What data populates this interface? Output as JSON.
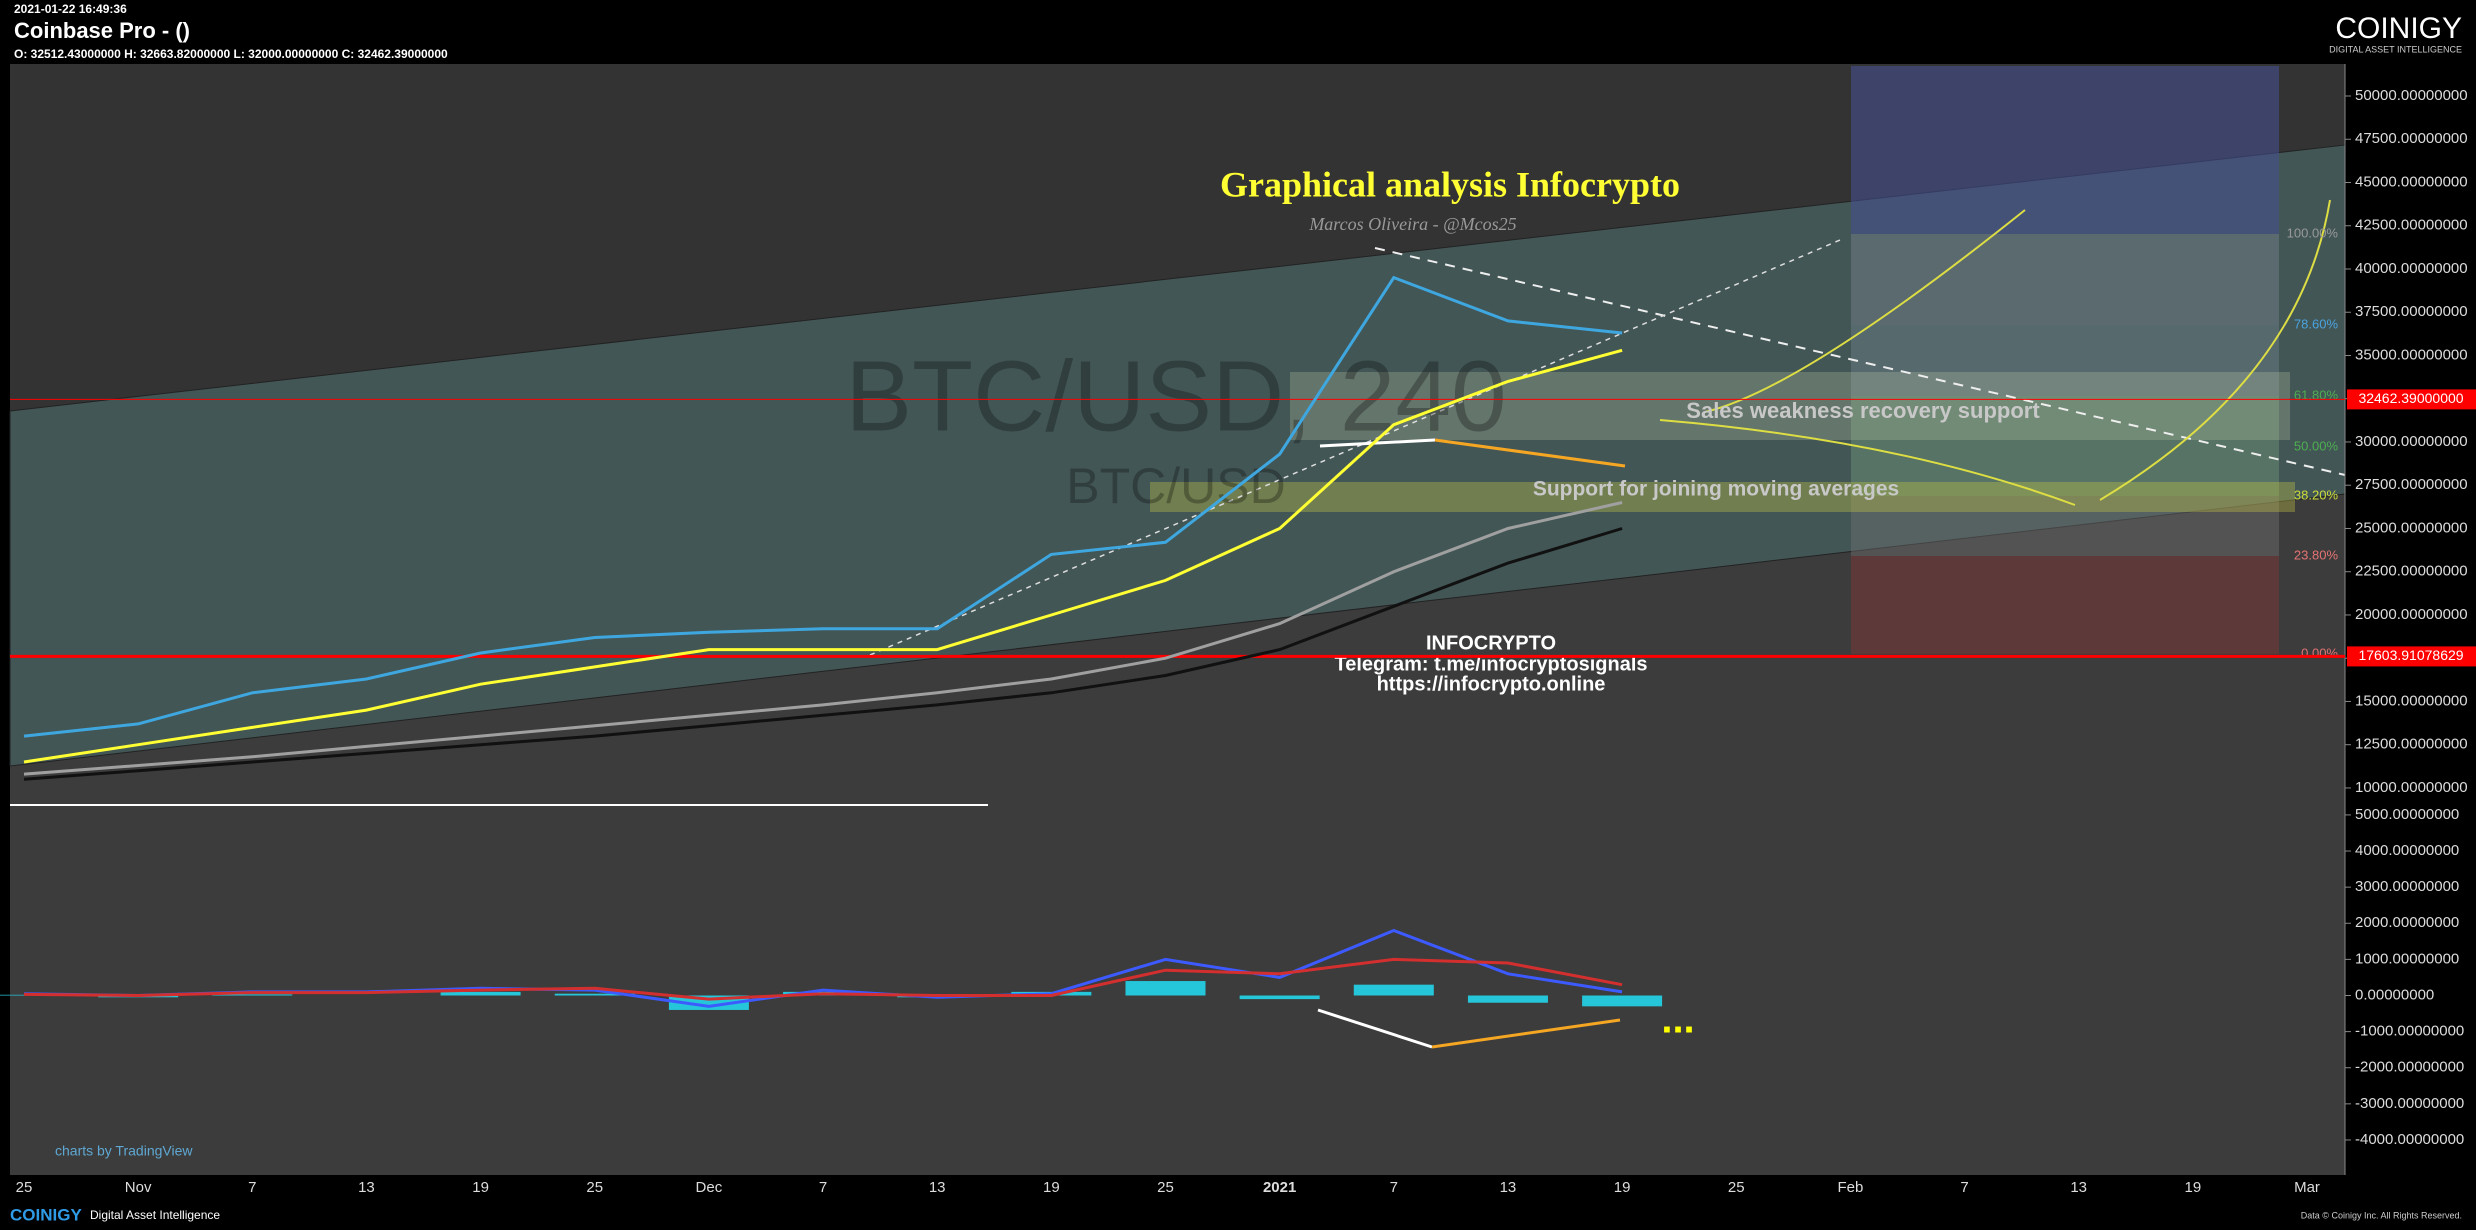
{
  "header": {
    "timestamp": "2021-01-22 16:49:36",
    "title": "Coinbase Pro -  ()",
    "ohlc": "O: 32512.43000000 H: 32663.82000000 L: 32000.00000000 C: 32462.39000000",
    "logo": "COINIGY",
    "logo_tagline": "DIGITAL ASSET INTELLIGENCE"
  },
  "annotations": {
    "title": "Graphical analysis Infocrypto",
    "author": "Marcos Oliveira - @Mcos25",
    "watermark": "BTC/USD, 240",
    "watermark_small": "BTC/USD",
    "sales_support": "Sales weakness recovery support",
    "ma_support": "Support for joining moving averages",
    "brand": "INFOCRYPTO",
    "telegram": "Telegram: t.me/infocryptosignals",
    "website": "https://infocrypto.online",
    "dots": "...",
    "fib_labels": [
      "100.00%",
      "78.60%",
      "61.80%",
      "50.00%",
      "38.20%",
      "23.80%",
      "0.00%"
    ],
    "tradingview": "charts by TradingView"
  },
  "footer": {
    "logo": "COINIGY",
    "tagline": "Digital Asset Intelligence",
    "copyright": "Data © Coinigy Inc. All Rights Reserved."
  },
  "chart_data": [
    {
      "type": "line",
      "categories": [
        "25",
        "Nov",
        "7",
        "13",
        "19",
        "25",
        "Dec",
        "7",
        "13",
        "19",
        "25",
        "2021",
        "7",
        "13",
        "19",
        "25",
        "Feb",
        "7",
        "13",
        "19",
        "Mar"
      ],
      "ylim": [
        9130,
        51850
      ],
      "yticks": [
        {
          "value": 50000,
          "label": "50000.00000000"
        },
        {
          "value": 47500,
          "label": "47500.00000000"
        },
        {
          "value": 45000,
          "label": "45000.00000000"
        },
        {
          "value": 42500,
          "label": "42500.00000000"
        },
        {
          "value": 40000,
          "label": "40000.00000000"
        },
        {
          "value": 37500,
          "label": "37500.00000000"
        },
        {
          "value": 35000,
          "label": "35000.00000000"
        },
        {
          "value": 32500,
          "label": "32500.00000000"
        },
        {
          "value": 30000,
          "label": "30000.00000000"
        },
        {
          "value": 27500,
          "label": "27500.00000000"
        },
        {
          "value": 25000,
          "label": "25000.00000000"
        },
        {
          "value": 22500,
          "label": "22500.00000000"
        },
        {
          "value": 20000,
          "label": "20000.00000000"
        },
        {
          "value": 17500,
          "label": "17500.00000000"
        },
        {
          "value": 15000,
          "label": "15000.00000000"
        },
        {
          "value": 12500,
          "label": "12500.00000000"
        },
        {
          "value": 10000,
          "label": "10000.00000000"
        }
      ],
      "series": [
        {
          "color": "#3fa7e0",
          "values": [
            13000,
            13700,
            15500,
            16300,
            17800,
            18700,
            19000,
            19200,
            19200,
            23500,
            24200,
            29300,
            39500,
            37000,
            36300,
            null,
            null,
            null,
            null,
            null,
            null
          ]
        },
        {
          "color": "#ffff33",
          "values": [
            11500,
            12500,
            13500,
            14500,
            16000,
            17000,
            18000,
            18000,
            18000,
            20000,
            22000,
            25000,
            31000,
            33500,
            35300,
            null,
            null,
            null,
            null,
            null,
            null
          ]
        },
        {
          "color": "#a0a0a0",
          "values": [
            10800,
            11300,
            11800,
            12400,
            13000,
            13600,
            14200,
            14800,
            15500,
            16300,
            17500,
            19500,
            22500,
            25000,
            26500,
            null,
            null,
            null,
            null,
            null,
            null
          ]
        },
        {
          "color": "#111111",
          "values": [
            10500,
            11000,
            11500,
            12000,
            12500,
            13000,
            13600,
            14200,
            14800,
            15500,
            16500,
            18000,
            20500,
            23000,
            25000,
            null,
            null,
            null,
            null,
            null,
            null
          ]
        }
      ],
      "reference_lines": [
        {
          "value": 17603.91078629,
          "label": "17603.91078629",
          "color": "#ff0000"
        },
        {
          "value": 32462.39,
          "label": "32462.39000000",
          "color": "#ff0000"
        }
      ]
    },
    {
      "type": "line",
      "ylim": [
        -4970,
        5330
      ],
      "yticks": [
        {
          "value": 5000,
          "label": "5000.00000000"
        },
        {
          "value": 4000,
          "label": "4000.00000000"
        },
        {
          "value": 3000,
          "label": "3000.00000000"
        },
        {
          "value": 2000,
          "label": "2000.00000000"
        },
        {
          "value": 1000,
          "label": "1000.00000000"
        },
        {
          "value": 0,
          "label": "0.00000000"
        },
        {
          "value": -1000,
          "label": "-1000.00000000"
        },
        {
          "value": -2000,
          "label": "-2000.00000000"
        },
        {
          "value": -3000,
          "label": "-3000.00000000"
        },
        {
          "value": -4000,
          "label": "-4000.00000000"
        }
      ],
      "histogram": {
        "color": "#26c6da",
        "values": [
          20,
          -50,
          30,
          0,
          100,
          50,
          -400,
          100,
          -50,
          100,
          400,
          -100,
          300,
          -200,
          -300,
          null,
          null,
          null,
          null,
          null,
          null
        ]
      },
      "series": [
        {
          "color": "#3d5afe",
          "values": [
            50,
            0,
            100,
            100,
            200,
            150,
            -300,
            150,
            -50,
            50,
            1000,
            500,
            1800,
            600,
            100,
            null,
            null,
            null,
            null,
            null,
            null
          ]
        },
        {
          "color": "#d32f2f",
          "values": [
            30,
            0,
            80,
            80,
            150,
            200,
            -100,
            50,
            0,
            0,
            700,
            600,
            1000,
            900,
            300,
            null,
            null,
            null,
            null,
            null,
            null
          ]
        }
      ]
    }
  ]
}
